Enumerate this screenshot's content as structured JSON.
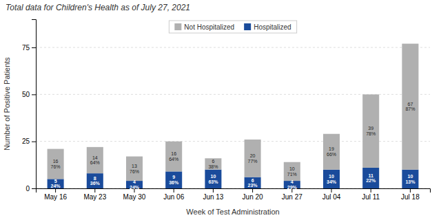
{
  "chart_data": {
    "type": "bar",
    "stacked": true,
    "title": "Total data for Children's Health as of July 27, 2021",
    "xlabel": "Week of Test Administration",
    "ylabel": "Number of Positive Patients",
    "categories": [
      "May 16",
      "May 23",
      "May 30",
      "Jun 06",
      "Jun 13",
      "Jun 20",
      "Jun 27",
      "Jul 04",
      "Jul 11",
      "Jul 18"
    ],
    "series": [
      {
        "name": "Hospitalized",
        "color": "#1A4B9B",
        "values": [
          5,
          8,
          4,
          9,
          10,
          6,
          4,
          10,
          11,
          10
        ],
        "share_labels": [
          "24%",
          "36%",
          "24%",
          "36%",
          "63%",
          "23%",
          "29%",
          "34%",
          "22%",
          "13%"
        ]
      },
      {
        "name": "Not Hospitalized",
        "color": "#B0B0B0",
        "values": [
          16,
          14,
          13,
          16,
          6,
          20,
          10,
          19,
          39,
          67
        ],
        "share_labels": [
          "76%",
          "64%",
          "76%",
          "64%",
          "38%",
          "77%",
          "71%",
          "66%",
          "78%",
          "87%"
        ]
      }
    ],
    "ylim": [
      0,
      90
    ],
    "yticks": [
      0,
      25,
      50,
      75
    ],
    "grid": true,
    "legend": "upper center",
    "data_labels": true
  }
}
